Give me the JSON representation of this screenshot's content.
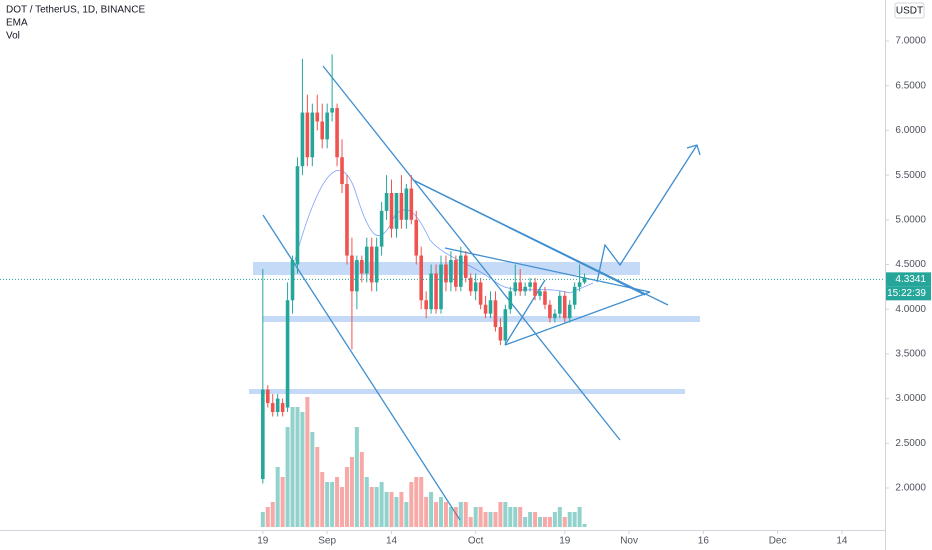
{
  "chart_data": {
    "type": "candlestick",
    "title": "DOT / TetherUS, 1D, BINANCE",
    "indicators": [
      "EMA",
      "Vol"
    ],
    "currency": "USDT",
    "last_price": 4.3341,
    "last_price_label": "4.3341",
    "countdown": "15:22:39",
    "up_color": "#26a69a",
    "down_color": "#ef5350",
    "x": [
      0,
      1,
      2,
      3,
      4,
      5,
      6,
      7,
      8,
      9,
      10,
      11,
      12,
      13,
      14,
      15,
      16,
      17,
      18,
      19,
      20,
      21,
      22,
      23,
      24,
      25,
      26,
      27,
      28,
      29,
      30,
      31,
      32,
      33,
      34,
      35,
      36,
      37,
      38,
      39,
      40,
      41,
      42,
      43,
      44,
      45,
      46,
      47,
      48,
      49,
      50,
      51,
      52,
      53,
      54,
      55,
      56,
      57,
      58,
      59,
      60,
      61,
      62,
      63,
      64,
      65
    ],
    "open": [
      2.1,
      3.1,
      2.95,
      2.85,
      2.95,
      2.9,
      4.1,
      4.5,
      5.6,
      6.2,
      5.7,
      6.2,
      6.1,
      5.9,
      6.2,
      6.25,
      5.7,
      5.4,
      4.6,
      4.2,
      4.55,
      4.4,
      4.7,
      4.3,
      4.7,
      5.1,
      5.3,
      4.9,
      5.3,
      5.0,
      5.35,
      5.0,
      4.6,
      4.1,
      4.0,
      4.4,
      4.0,
      4.5,
      4.3,
      4.55,
      4.25,
      4.6,
      4.35,
      4.2,
      4.3,
      4.05,
      3.95,
      4.1,
      3.8,
      3.65,
      4.0,
      4.2,
      4.3,
      4.2,
      4.25,
      4.3,
      4.15,
      4.2,
      4.05,
      3.9,
      3.95,
      4.15,
      3.9,
      4.05,
      4.25,
      4.3
    ],
    "high": [
      4.45,
      3.15,
      3.05,
      3.05,
      3.0,
      4.3,
      4.6,
      5.7,
      6.8,
      6.4,
      6.3,
      6.4,
      6.3,
      6.3,
      6.85,
      6.3,
      5.9,
      5.5,
      4.8,
      4.6,
      4.6,
      4.8,
      4.8,
      4.8,
      5.2,
      5.5,
      5.45,
      5.3,
      5.5,
      5.4,
      5.5,
      5.1,
      4.7,
      4.2,
      4.5,
      4.5,
      4.6,
      4.6,
      4.65,
      4.6,
      4.7,
      4.65,
      4.4,
      4.4,
      4.35,
      4.15,
      4.2,
      4.2,
      3.9,
      4.05,
      4.25,
      4.5,
      4.45,
      4.3,
      4.35,
      4.35,
      4.25,
      4.25,
      4.1,
      4.0,
      4.2,
      4.2,
      4.1,
      4.3,
      4.5,
      4.4
    ],
    "low": [
      2.05,
      2.9,
      2.8,
      2.8,
      2.8,
      2.85,
      3.95,
      4.4,
      5.5,
      5.6,
      5.6,
      6.0,
      5.8,
      5.8,
      6.1,
      5.6,
      5.3,
      4.5,
      3.55,
      4.0,
      4.3,
      4.3,
      4.2,
      4.2,
      4.6,
      5.0,
      4.8,
      4.8,
      4.9,
      4.9,
      4.95,
      4.5,
      4.0,
      3.9,
      3.95,
      3.95,
      3.95,
      4.2,
      4.2,
      4.2,
      4.2,
      4.3,
      4.15,
      4.1,
      4.0,
      3.9,
      3.9,
      3.75,
      3.6,
      3.6,
      3.95,
      4.15,
      4.15,
      4.15,
      4.2,
      4.1,
      4.1,
      4.0,
      3.85,
      3.85,
      3.9,
      3.85,
      3.85,
      4.0,
      4.2,
      4.28
    ],
    "close": [
      3.1,
      2.95,
      2.85,
      3.0,
      2.85,
      4.1,
      4.55,
      5.6,
      6.2,
      5.7,
      6.2,
      6.1,
      5.9,
      6.2,
      6.25,
      5.7,
      5.4,
      4.6,
      4.2,
      4.55,
      4.4,
      4.7,
      4.3,
      4.7,
      5.1,
      5.3,
      4.9,
      5.3,
      5.0,
      5.35,
      5.0,
      4.6,
      4.1,
      4.0,
      4.4,
      4.0,
      4.5,
      4.3,
      4.55,
      4.25,
      4.6,
      4.35,
      4.2,
      4.3,
      4.05,
      3.95,
      4.1,
      3.8,
      3.65,
      4.0,
      4.2,
      4.3,
      4.2,
      4.25,
      4.3,
      4.15,
      4.2,
      4.05,
      3.9,
      3.95,
      4.15,
      3.9,
      4.05,
      4.25,
      4.3,
      4.35
    ],
    "volume": [
      15,
      20,
      25,
      60,
      50,
      100,
      120,
      120,
      115,
      130,
      95,
      80,
      55,
      45,
      45,
      50,
      40,
      60,
      70,
      100,
      75,
      50,
      40,
      40,
      45,
      35,
      35,
      30,
      35,
      25,
      45,
      50,
      50,
      30,
      35,
      25,
      30,
      25,
      20,
      20,
      25,
      25,
      10,
      20,
      20,
      15,
      15,
      15,
      25,
      25,
      20,
      20,
      20,
      10,
      15,
      15,
      10,
      10,
      10,
      15,
      20,
      10,
      15,
      15,
      20,
      3
    ],
    "vlim": [
      0,
      140
    ],
    "xlim": [
      -53.1,
      125.7
    ],
    "xticks": [
      {
        "value": 0,
        "label": "19"
      },
      {
        "value": 13,
        "label": "Sep"
      },
      {
        "value": 26,
        "label": "14"
      },
      {
        "value": 43,
        "label": "Oct"
      },
      {
        "value": 61,
        "label": "19"
      },
      {
        "value": 74,
        "label": "Nov"
      },
      {
        "value": 89,
        "label": "16"
      },
      {
        "value": 104,
        "label": "Dec"
      },
      {
        "value": 117,
        "label": "14"
      }
    ],
    "ylim": [
      1.53,
      7.459
    ],
    "yticks": [
      {
        "value": 2,
        "label": "2.0000"
      },
      {
        "value": 2.5,
        "label": "2.5000"
      },
      {
        "value": 3,
        "label": "3.0000"
      },
      {
        "value": 3.5,
        "label": "3.5000"
      },
      {
        "value": 4,
        "label": "4.0000"
      },
      {
        "value": 4.5,
        "label": "4.5000"
      },
      {
        "value": 5,
        "label": "5.0000"
      },
      {
        "value": 5.5,
        "label": "5.5000"
      },
      {
        "value": 6,
        "label": "6.0000"
      },
      {
        "value": 6.5,
        "label": "6.5000"
      },
      {
        "value": 7,
        "label": "7.0000"
      }
    ]
  }
}
